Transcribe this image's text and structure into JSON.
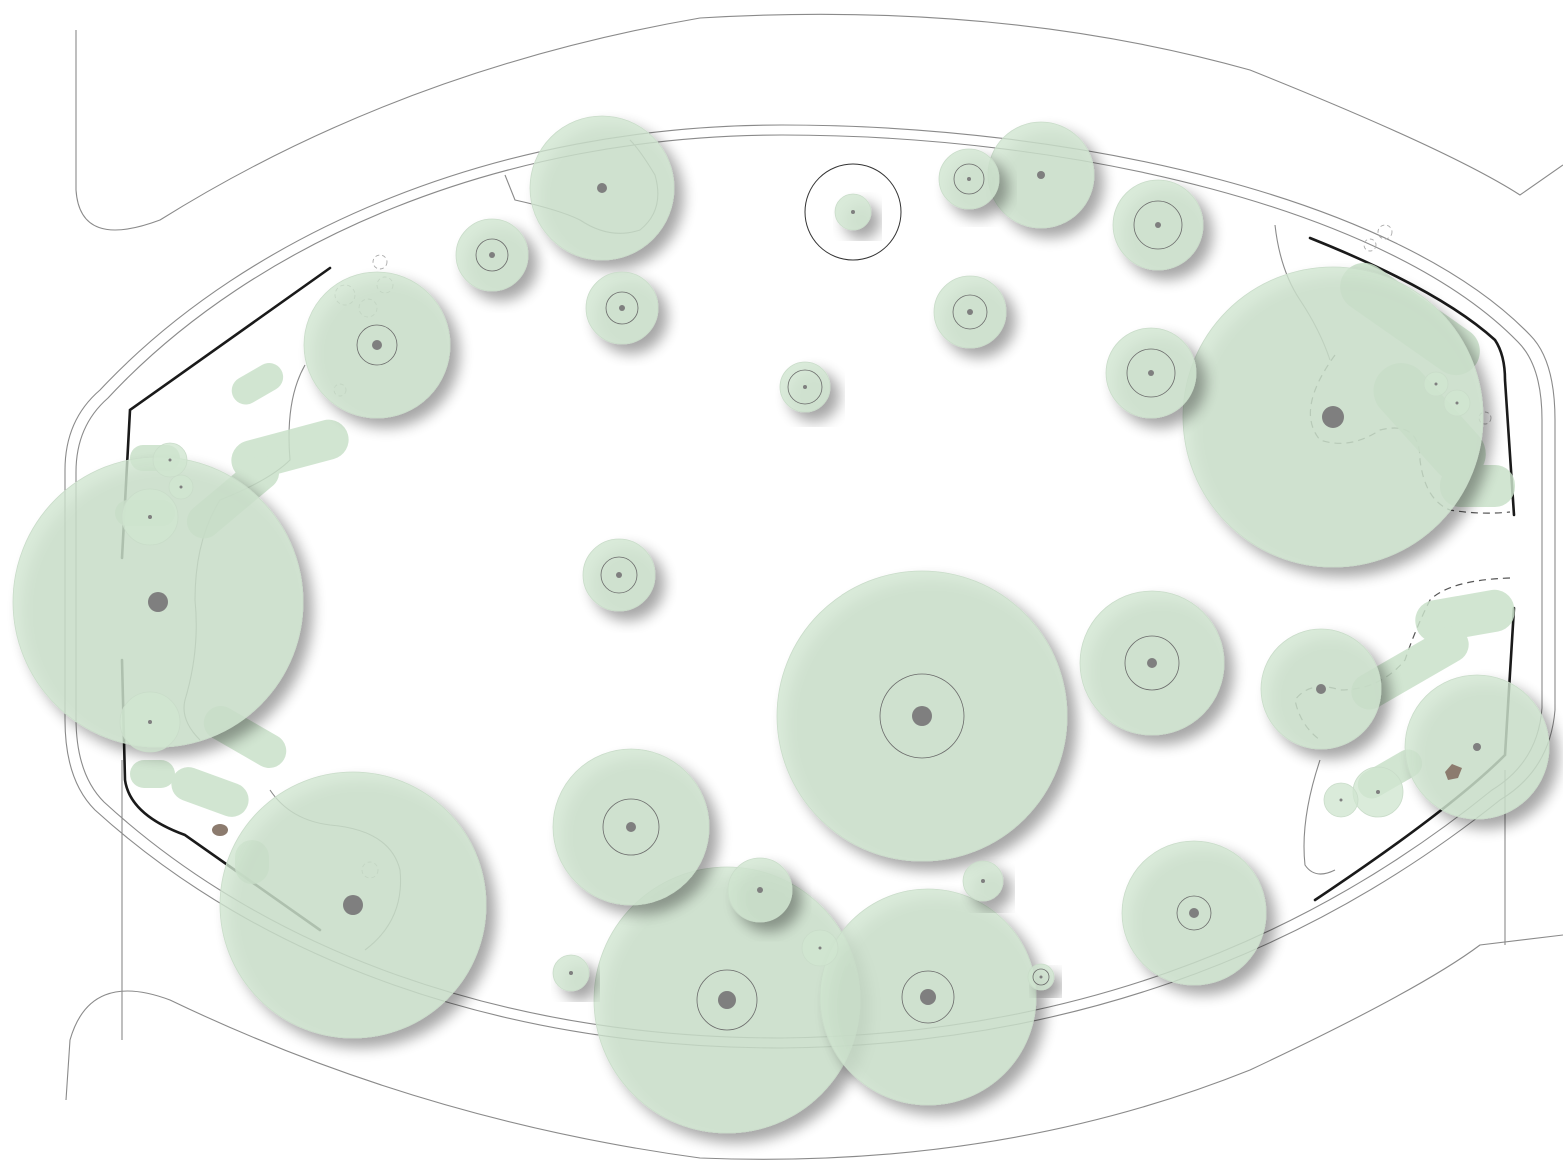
{
  "colors": {
    "canopy_fill": "#cfe6cf",
    "shrub_fill": "#c9e1c9",
    "trunk": "#7f7f7f",
    "boundary_line": "#1a1a1a",
    "path_line": "#8a8a8a",
    "rock": "#8c7b6e",
    "background": "#ffffff"
  },
  "trees": [
    {
      "kind": "large-tree",
      "ring": true
    },
    {
      "kind": "large-tree",
      "ring": true
    },
    {
      "kind": "large-tree",
      "ring": true
    },
    {
      "kind": "large-tree",
      "ring": true
    },
    {
      "kind": "large-tree",
      "ring": true
    },
    {
      "kind": "large-tree",
      "ring": true
    },
    {
      "kind": "medium-tree",
      "ring": true
    },
    {
      "kind": "medium-tree",
      "ring": true
    },
    {
      "kind": "medium-tree",
      "ring": true
    },
    {
      "kind": "medium-tree",
      "ring": true
    },
    {
      "kind": "medium-tree",
      "ring": true
    },
    {
      "kind": "medium-tree",
      "ring": true
    },
    {
      "kind": "medium-tree",
      "ring": true
    },
    {
      "kind": "medium-tree",
      "ring": true
    },
    {
      "kind": "medium-tree",
      "ring": true
    },
    {
      "kind": "small-tree",
      "ring": true
    },
    {
      "kind": "small-tree",
      "ring": true
    },
    {
      "kind": "small-tree",
      "ring": true
    },
    {
      "kind": "small-tree",
      "ring": true
    },
    {
      "kind": "small-tree",
      "ring": true
    },
    {
      "kind": "small-tree",
      "ring": true
    },
    {
      "kind": "small-tree",
      "ring": true
    },
    {
      "kind": "small-tree",
      "ring": true
    },
    {
      "kind": "small-tree",
      "ring": true
    },
    {
      "kind": "small-tree",
      "ring": true
    },
    {
      "kind": "small-tree",
      "ring": true
    },
    {
      "kind": "small-tree",
      "ring": true
    },
    {
      "kind": "small-tree",
      "ring": false
    },
    {
      "kind": "small-tree",
      "ring": false
    },
    {
      "kind": "small-tree",
      "ring": false
    },
    {
      "kind": "small-tree",
      "ring": false
    },
    {
      "kind": "small-tree",
      "ring": false
    },
    {
      "kind": "small-tree",
      "ring": false
    },
    {
      "kind": "small-tree",
      "ring": false
    },
    {
      "kind": "small-tree",
      "ring": false
    },
    {
      "kind": "small-tree",
      "ring": false
    }
  ],
  "proposed_tree_outline": true,
  "rocks": 2
}
